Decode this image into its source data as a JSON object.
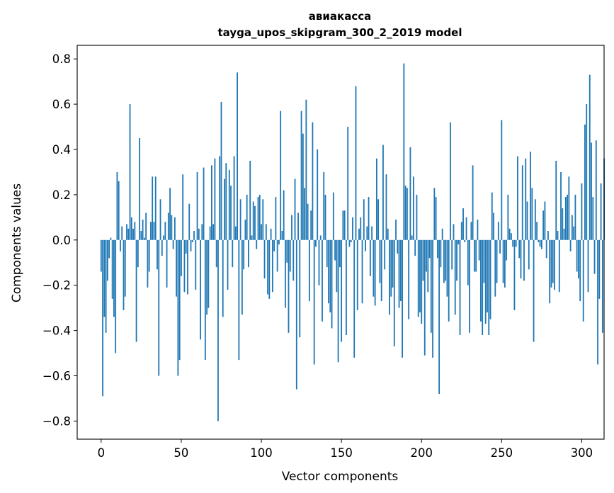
{
  "chart_data": {
    "type": "bar",
    "title": "авиакасса",
    "subtitle": "tayga_upos_skipgram_300_2_2019 model",
    "xlabel": "Vector components",
    "ylabel": "Components values",
    "xlim": [
      -14.95,
      313.95
    ],
    "ylim": [
      -0.88,
      0.86
    ],
    "xticks": [
      0,
      50,
      100,
      150,
      200,
      250,
      300
    ],
    "yticks": [
      -0.8,
      -0.6,
      -0.4,
      -0.2,
      0.0,
      0.2,
      0.4,
      0.6,
      0.8
    ],
    "ytick_labels": [
      "−0.8",
      "−0.6",
      "−0.4",
      "−0.2",
      "0.0",
      "0.2",
      "0.4",
      "0.6",
      "0.8"
    ],
    "bar_color": "#1f77b4",
    "values": [
      -0.14,
      -0.69,
      -0.34,
      -0.41,
      -0.18,
      -0.08,
      0.01,
      -0.26,
      -0.34,
      -0.5,
      0.3,
      0.26,
      -0.05,
      0.06,
      -0.31,
      -0.25,
      0.07,
      0.05,
      0.6,
      0.1,
      0.05,
      0.08,
      -0.45,
      -0.12,
      0.45,
      0.04,
      0.09,
      0.01,
      0.12,
      -0.21,
      -0.14,
      0.08,
      0.28,
      0.08,
      0.28,
      -0.13,
      -0.6,
      0.18,
      -0.07,
      0.02,
      0.08,
      -0.21,
      0.12,
      0.23,
      0.11,
      -0.04,
      0.1,
      -0.25,
      -0.6,
      -0.53,
      -0.16,
      0.29,
      -0.23,
      -0.06,
      -0.24,
      0.16,
      -0.05,
      -0.01,
      0.04,
      -0.22,
      0.3,
      0.05,
      -0.44,
      0.07,
      0.32,
      -0.53,
      -0.33,
      -0.3,
      0.06,
      0.33,
      0.07,
      0.36,
      -0.12,
      -0.8,
      0.37,
      0.61,
      -0.34,
      0.27,
      0.34,
      -0.22,
      0.31,
      0.24,
      -0.12,
      0.37,
      0.06,
      0.74,
      -0.53,
      0.18,
      -0.33,
      -0.13,
      0.09,
      0.2,
      -0.12,
      0.35,
      0.02,
      0.17,
      0.15,
      -0.04,
      0.19,
      0.2,
      0.07,
      0.18,
      -0.17,
      0.07,
      -0.24,
      -0.26,
      0.05,
      -0.23,
      -0.05,
      0.19,
      -0.14,
      -0.02,
      0.57,
      0.04,
      0.22,
      -0.3,
      -0.1,
      -0.41,
      -0.14,
      0.11,
      -0.18,
      0.27,
      -0.66,
      0.12,
      -0.43,
      0.57,
      0.47,
      0.23,
      0.62,
      0.16,
      -0.27,
      0.13,
      0.52,
      -0.55,
      -0.03,
      0.4,
      -0.2,
      0.02,
      -0.36,
      0.3,
      0.2,
      -0.12,
      -0.28,
      -0.32,
      -0.39,
      0.21,
      -0.09,
      -0.23,
      -0.54,
      -0.12,
      -0.45,
      0.13,
      0.13,
      -0.42,
      0.5,
      -0.03,
      -0.01,
      0.1,
      -0.52,
      0.68,
      -0.31,
      0.05,
      0.1,
      -0.28,
      0.18,
      -0.05,
      0.06,
      0.19,
      -0.16,
      0.06,
      -0.25,
      -0.29,
      0.36,
      0.18,
      -0.19,
      -0.27,
      0.42,
      -0.13,
      0.29,
      0.05,
      -0.33,
      -0.25,
      -0.21,
      -0.47,
      0.09,
      -0.06,
      -0.3,
      -0.27,
      -0.52,
      0.78,
      0.24,
      0.23,
      -0.35,
      0.41,
      0.02,
      0.28,
      -0.07,
      0.2,
      -0.34,
      -0.32,
      -0.37,
      -0.18,
      -0.51,
      -0.14,
      -0.23,
      -0.08,
      -0.41,
      -0.52,
      0.23,
      0.19,
      -0.08,
      -0.68,
      -0.12,
      0.05,
      -0.19,
      -0.18,
      -0.25,
      -0.36,
      0.52,
      -0.13,
      0.07,
      -0.33,
      -0.18,
      -0.02,
      -0.42,
      0.08,
      0.14,
      -0.01,
      0.1,
      -0.2,
      -0.41,
      0.08,
      0.33,
      -0.14,
      -0.14,
      0.09,
      -0.09,
      -0.36,
      -0.42,
      -0.19,
      -0.37,
      -0.32,
      -0.42,
      -0.35,
      0.21,
      0.12,
      -0.25,
      -0.19,
      0.08,
      -0.06,
      0.53,
      -0.19,
      -0.21,
      -0.09,
      0.2,
      0.05,
      0.03,
      -0.03,
      -0.31,
      -0.03,
      0.37,
      -0.08,
      -0.17,
      0.33,
      -0.18,
      0.36,
      0.17,
      -0.13,
      0.39,
      0.23,
      -0.45,
      0.18,
      0.08,
      -0.01,
      -0.03,
      -0.04,
      0.13,
      0.17,
      -0.08,
      0.04,
      -0.28,
      -0.21,
      -0.19,
      -0.22,
      0.35,
      0.04,
      -0.23,
      0.3,
      0.14,
      0.05,
      0.19,
      0.2,
      0.28,
      -0.05,
      0.11,
      0.06,
      0.2,
      -0.14,
      -0.17,
      -0.27,
      0.25,
      -0.36,
      0.51,
      0.6,
      -0.23,
      0.73,
      0.43,
      0.19,
      -0.15,
      0.44,
      -0.55,
      -0.26,
      0.25,
      -0.41,
      0.36
    ]
  }
}
